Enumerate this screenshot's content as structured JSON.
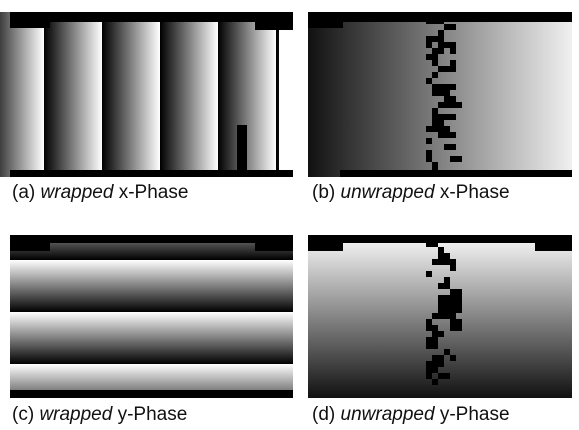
{
  "panels": [
    {
      "label": "(a)",
      "emphasis": "wrapped",
      "rest": "x-Phase"
    },
    {
      "label": "(b)",
      "emphasis": "unwrapped",
      "rest": "x-Phase"
    },
    {
      "label": "(c)",
      "emphasis": "wrapped",
      "rest": "y-Phase"
    },
    {
      "label": "(d)",
      "emphasis": "unwrapped",
      "rest": "y-Phase"
    }
  ]
}
